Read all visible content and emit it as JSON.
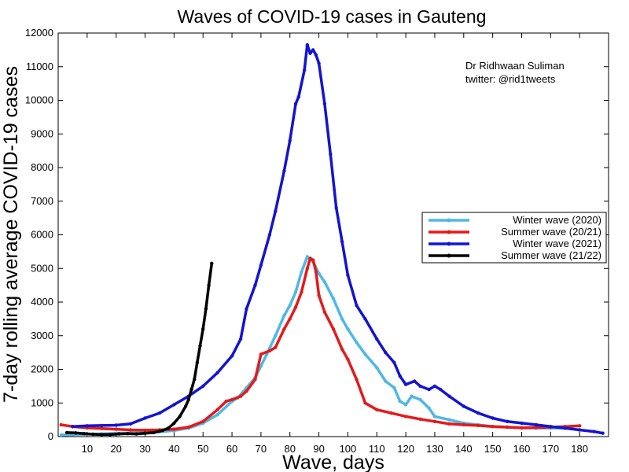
{
  "chart_data": {
    "type": "line",
    "title": "Waves of COVID-19 cases in Gauteng",
    "xlabel": "Wave, days",
    "ylabel": "7-day rolling average COVID-19 cases",
    "xlim": [
      0,
      190
    ],
    "ylim": [
      0,
      12000
    ],
    "xticks": [
      10,
      20,
      30,
      40,
      50,
      60,
      70,
      80,
      90,
      100,
      110,
      120,
      130,
      140,
      150,
      160,
      170,
      180
    ],
    "yticks": [
      0,
      1000,
      2000,
      3000,
      4000,
      5000,
      6000,
      7000,
      8000,
      9000,
      10000,
      11000,
      12000
    ],
    "grid": false,
    "legend_position": "right",
    "annotation": [
      "Dr Ridhwaan Suliman",
      "twitter: @rid1tweets"
    ],
    "series": [
      {
        "name": "Winter wave (2020)",
        "color": "#4fb8e6",
        "x": [
          1,
          5,
          10,
          15,
          20,
          25,
          30,
          35,
          40,
          45,
          50,
          55,
          60,
          62,
          65,
          68,
          70,
          72,
          75,
          78,
          80,
          82,
          84,
          86,
          88,
          90,
          92,
          95,
          98,
          100,
          103,
          106,
          110,
          113,
          116,
          118,
          120,
          122,
          125,
          128,
          130,
          135,
          140,
          145,
          150,
          155,
          160,
          165,
          170,
          175
        ],
        "y": [
          50,
          60,
          70,
          80,
          100,
          110,
          120,
          140,
          180,
          250,
          400,
          650,
          1050,
          1150,
          1450,
          1750,
          2100,
          2450,
          3000,
          3600,
          3900,
          4300,
          4900,
          5350,
          5200,
          4850,
          4600,
          4100,
          3500,
          3200,
          2800,
          2450,
          2050,
          1650,
          1450,
          1050,
          950,
          1200,
          1100,
          850,
          600,
          500,
          400,
          350,
          300,
          280,
          260,
          250,
          250,
          250
        ]
      },
      {
        "name": "Summer wave (20/21)",
        "color": "#e41a1c",
        "x": [
          1,
          5,
          10,
          15,
          20,
          25,
          30,
          35,
          40,
          45,
          50,
          55,
          58,
          60,
          63,
          65,
          68,
          70,
          73,
          75,
          78,
          80,
          82,
          84,
          86,
          87,
          88,
          89,
          90,
          92,
          95,
          98,
          100,
          103,
          106,
          110,
          115,
          120,
          125,
          130,
          135,
          140,
          145,
          150,
          155,
          160,
          165,
          170,
          175,
          180
        ],
        "y": [
          350,
          300,
          260,
          240,
          220,
          200,
          190,
          200,
          220,
          280,
          450,
          800,
          1050,
          1100,
          1200,
          1350,
          1700,
          2450,
          2550,
          2650,
          3200,
          3500,
          3850,
          4300,
          5000,
          5300,
          5250,
          4900,
          4200,
          3700,
          3200,
          2600,
          2300,
          1700,
          1000,
          800,
          700,
          600,
          520,
          450,
          380,
          350,
          330,
          300,
          280,
          260,
          270,
          280,
          300,
          320
        ]
      },
      {
        "name": "Winter wave (2021)",
        "color": "#1414d0",
        "x": [
          5,
          10,
          15,
          20,
          25,
          30,
          35,
          40,
          45,
          50,
          55,
          60,
          63,
          65,
          68,
          70,
          73,
          75,
          78,
          80,
          82,
          83,
          85,
          86,
          87,
          88,
          89,
          90,
          92,
          94,
          96,
          98,
          100,
          103,
          106,
          110,
          113,
          116,
          118,
          120,
          123,
          125,
          128,
          130,
          132,
          135,
          140,
          145,
          150,
          155,
          160,
          165,
          170,
          175,
          180,
          185,
          188
        ],
        "y": [
          300,
          320,
          330,
          340,
          380,
          550,
          700,
          950,
          1200,
          1500,
          1900,
          2400,
          2900,
          3800,
          4500,
          5100,
          6000,
          6700,
          7900,
          8800,
          9900,
          10100,
          10900,
          11650,
          11400,
          11500,
          11350,
          11100,
          9900,
          8400,
          6800,
          5800,
          4800,
          3900,
          3500,
          2900,
          2500,
          2200,
          1800,
          1550,
          1650,
          1500,
          1400,
          1500,
          1400,
          1200,
          900,
          700,
          550,
          450,
          400,
          350,
          300,
          250,
          200,
          150,
          100
        ]
      },
      {
        "name": "Summer wave (21/22)",
        "color": "#000000",
        "x": [
          3,
          6,
          9,
          12,
          15,
          18,
          21,
          24,
          27,
          30,
          33,
          36,
          38,
          40,
          42,
          44,
          45,
          46,
          47,
          48,
          49,
          50,
          51,
          52,
          53
        ],
        "y": [
          120,
          110,
          90,
          70,
          60,
          60,
          80,
          90,
          80,
          100,
          120,
          180,
          250,
          400,
          600,
          900,
          1100,
          1400,
          1700,
          2200,
          2700,
          3200,
          3800,
          4500,
          5150
        ]
      }
    ]
  }
}
